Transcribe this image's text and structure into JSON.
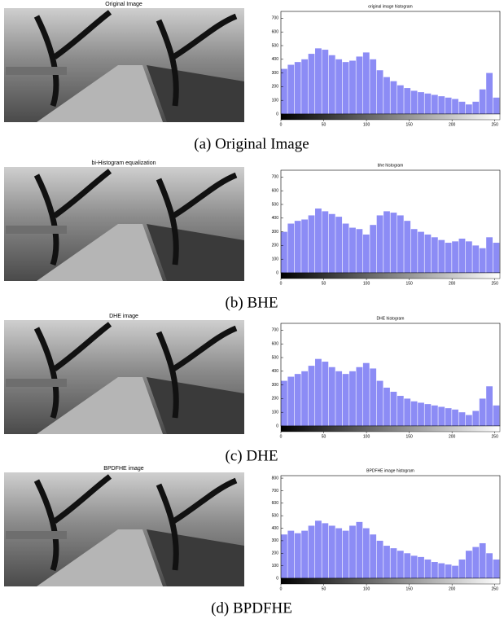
{
  "figure": {
    "panels": [
      {
        "image_title": "Original Image",
        "caption": "(a) Original Image",
        "histogram": {
          "type": "histogram",
          "title": "original image histogram",
          "color": "#8c8cf5",
          "bins": [
            0,
            8,
            16,
            24,
            32,
            40,
            48,
            56,
            64,
            72,
            80,
            88,
            96,
            104,
            112,
            120,
            128,
            136,
            144,
            152,
            160,
            168,
            176,
            184,
            192,
            200,
            208,
            216,
            224,
            232,
            240,
            248,
            256
          ],
          "values": [
            330,
            360,
            380,
            400,
            440,
            480,
            470,
            430,
            400,
            380,
            390,
            420,
            450,
            400,
            320,
            270,
            240,
            210,
            190,
            170,
            160,
            150,
            140,
            130,
            120,
            110,
            90,
            70,
            90,
            180,
            300,
            120
          ],
          "xlim": [
            0,
            256
          ],
          "ylim": [
            0,
            750
          ],
          "xticks": [
            0,
            50,
            100,
            150,
            200,
            250
          ],
          "yticks": [
            0,
            100,
            200,
            300,
            400,
            500,
            600,
            700
          ]
        }
      },
      {
        "image_title": "bi-Histogram equalization",
        "caption": "(b) BHE",
        "histogram": {
          "type": "histogram",
          "title": "bhe histogram",
          "color": "#8c8cf5",
          "bins": [
            0,
            8,
            16,
            24,
            32,
            40,
            48,
            56,
            64,
            72,
            80,
            88,
            96,
            104,
            112,
            120,
            128,
            136,
            144,
            152,
            160,
            168,
            176,
            184,
            192,
            200,
            208,
            216,
            224,
            232,
            240,
            248,
            256
          ],
          "values": [
            300,
            360,
            380,
            390,
            420,
            470,
            450,
            430,
            410,
            360,
            330,
            320,
            280,
            350,
            420,
            450,
            440,
            420,
            380,
            320,
            300,
            280,
            260,
            240,
            220,
            230,
            250,
            230,
            200,
            180,
            260,
            220
          ],
          "xlim": [
            0,
            256
          ],
          "ylim": [
            0,
            750
          ],
          "xticks": [
            0,
            50,
            100,
            150,
            200,
            250
          ],
          "yticks": [
            0,
            100,
            200,
            300,
            400,
            500,
            600,
            700
          ]
        }
      },
      {
        "image_title": "DHE image",
        "caption": "(c) DHE",
        "histogram": {
          "type": "histogram",
          "title": "DHE histogram",
          "color": "#8c8cf5",
          "bins": [
            0,
            8,
            16,
            24,
            32,
            40,
            48,
            56,
            64,
            72,
            80,
            88,
            96,
            104,
            112,
            120,
            128,
            136,
            144,
            152,
            160,
            168,
            176,
            184,
            192,
            200,
            208,
            216,
            224,
            232,
            240,
            248,
            256
          ],
          "values": [
            330,
            360,
            380,
            400,
            440,
            490,
            470,
            430,
            400,
            380,
            400,
            430,
            460,
            420,
            330,
            280,
            250,
            220,
            200,
            180,
            170,
            160,
            150,
            140,
            130,
            120,
            100,
            80,
            110,
            200,
            290,
            150
          ],
          "xlim": [
            0,
            256
          ],
          "ylim": [
            0,
            750
          ],
          "xticks": [
            0,
            50,
            100,
            150,
            200,
            250
          ],
          "yticks": [
            0,
            100,
            200,
            300,
            400,
            500,
            600,
            700
          ]
        }
      },
      {
        "image_title": "BPDFHE image",
        "caption": "(d) BPDFHE",
        "histogram": {
          "type": "histogram",
          "title": "BPDFHE image histogram",
          "color": "#8c8cf5",
          "bins": [
            0,
            8,
            16,
            24,
            32,
            40,
            48,
            56,
            64,
            72,
            80,
            88,
            96,
            104,
            112,
            120,
            128,
            136,
            144,
            152,
            160,
            168,
            176,
            184,
            192,
            200,
            208,
            216,
            224,
            232,
            240,
            248,
            256
          ],
          "values": [
            350,
            380,
            360,
            380,
            420,
            460,
            440,
            420,
            400,
            380,
            420,
            450,
            400,
            350,
            300,
            260,
            240,
            220,
            200,
            180,
            170,
            150,
            130,
            120,
            110,
            100,
            150,
            220,
            250,
            280,
            200,
            150
          ],
          "xlim": [
            0,
            256
          ],
          "ylim": [
            0,
            820
          ],
          "xticks": [
            0,
            50,
            100,
            150,
            200,
            250
          ],
          "yticks": [
            0,
            100,
            200,
            300,
            400,
            500,
            600,
            700,
            800
          ]
        }
      }
    ]
  }
}
